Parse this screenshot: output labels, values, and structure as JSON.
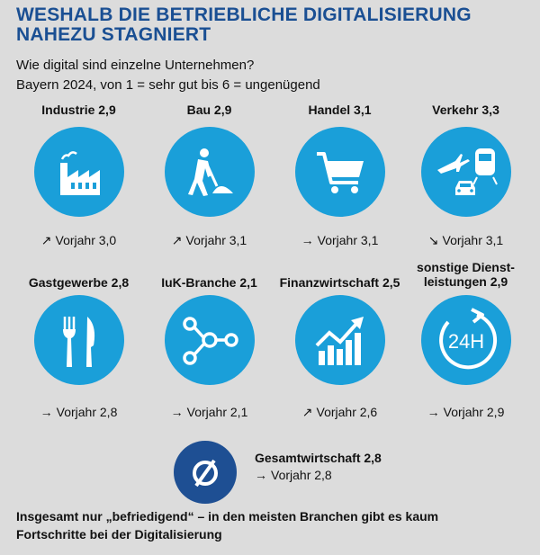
{
  "header": {
    "title_line1": "WESHALB DIE BETRIEBLICHE DIGITALISIERUNG",
    "title_line2": "NAHEZU STAGNIERT",
    "subtitle1": "Wie digital sind einzelne Unternehmen?",
    "subtitle2": "Bayern 2024, von 1 = sehr gut bis 6 = ungenügend"
  },
  "colors": {
    "icon_circle": "#1a9fd9",
    "title": "#1a4f93",
    "overall_circle": "#1e4f93"
  },
  "sectors": [
    {
      "label": "Industrie 2,9",
      "icon": "factory-icon",
      "trend": "up",
      "arrow": "↗",
      "previous": "Vorjahr 3,0"
    },
    {
      "label": "Bau 2,9",
      "icon": "construction-worker-icon",
      "trend": "up",
      "arrow": "↗",
      "previous": "Vorjahr 3,1"
    },
    {
      "label": "Handel 3,1",
      "icon": "shopping-cart-icon",
      "trend": "same",
      "arrow": "→",
      "previous": "Vorjahr 3,1"
    },
    {
      "label": "Verkehr 3,3",
      "icon": "transport-icon",
      "trend": "down",
      "arrow": "↘",
      "previous": "Vorjahr 3,1"
    },
    {
      "label": "Gastgewerbe 2,8",
      "icon": "fork-knife-icon",
      "trend": "same",
      "arrow": "→",
      "previous": "Vorjahr 2,8"
    },
    {
      "label": "IuK-Branche 2,1",
      "icon": "network-icon",
      "trend": "same",
      "arrow": "→",
      "previous": "Vorjahr 2,1"
    },
    {
      "label": "Finanzwirtschaft 2,5",
      "icon": "growth-chart-icon",
      "trend": "up",
      "arrow": "↗",
      "previous": "Vorjahr 2,6"
    },
    {
      "label_line1": "sonstige Dienst-",
      "label_line2": "leistungen 2,9",
      "icon": "24h-service-icon",
      "trend": "same",
      "arrow": "→",
      "previous": "Vorjahr 2,9"
    }
  ],
  "overall": {
    "symbol": "Ø",
    "label": "Gesamtwirtschaft 2,8",
    "arrow": "→",
    "previous": "Vorjahr 2,8"
  },
  "footer": {
    "line1": "Insgesamt nur „befriedigend“ – in den meisten Branchen gibt es kaum",
    "line2": "Fortschritte bei der Digitalisierung"
  }
}
